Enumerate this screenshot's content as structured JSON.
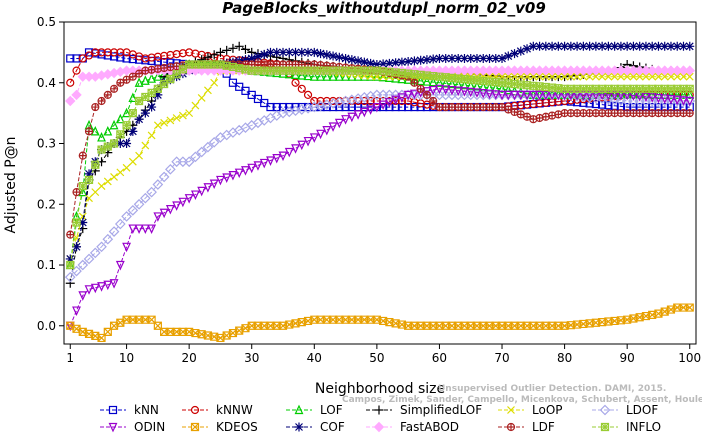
{
  "chart_data": {
    "type": "line",
    "title": "PageBlocks_withoutdupl_norm_02_v09",
    "xlabel": "Neighborhood size",
    "ylabel": "Adjusted P@n",
    "xlim": [
      0,
      101
    ],
    "ylim": [
      -0.03,
      0.5
    ],
    "xticks": [
      1,
      10,
      20,
      30,
      40,
      50,
      60,
      70,
      80,
      90,
      100
    ],
    "yticks": [
      0.0,
      0.1,
      0.2,
      0.3,
      0.4,
      0.5
    ],
    "ytick_labels": [
      "0.0",
      "0.1",
      "0.2",
      "0.3",
      "0.4",
      "0.5"
    ],
    "watermark_line1": "Unsupervised Outlier Detection. DAMI, 2015.",
    "watermark_line2": "Campos, Zimek, Sander, Campello, Micenkova, Schubert, Assent, Houle",
    "legend_position": "bottom",
    "series": [
      {
        "name": "kNN",
        "color": "#0000cc",
        "marker": "square",
        "points": [
          [
            1,
            0.44
          ],
          [
            3,
            0.44
          ],
          [
            4,
            0.45
          ],
          [
            10,
            0.44
          ],
          [
            20,
            0.43
          ],
          [
            25,
            0.43
          ],
          [
            27,
            0.4
          ],
          [
            30,
            0.38
          ],
          [
            33,
            0.36
          ],
          [
            50,
            0.36
          ],
          [
            60,
            0.36
          ],
          [
            70,
            0.36
          ],
          [
            80,
            0.37
          ],
          [
            90,
            0.36
          ],
          [
            100,
            0.36
          ]
        ]
      },
      {
        "name": "kNNW",
        "color": "#cc0000",
        "marker": "circle",
        "points": [
          [
            1,
            0.4
          ],
          [
            3,
            0.44
          ],
          [
            5,
            0.45
          ],
          [
            10,
            0.45
          ],
          [
            13,
            0.44
          ],
          [
            20,
            0.45
          ],
          [
            25,
            0.44
          ],
          [
            35,
            0.43
          ],
          [
            37,
            0.4
          ],
          [
            40,
            0.37
          ],
          [
            50,
            0.37
          ],
          [
            55,
            0.37
          ],
          [
            60,
            0.36
          ],
          [
            70,
            0.36
          ],
          [
            80,
            0.37
          ],
          [
            90,
            0.38
          ],
          [
            100,
            0.38
          ]
        ]
      },
      {
        "name": "LOF",
        "color": "#00cc00",
        "marker": "triangle-up",
        "points": [
          [
            1,
            0.1
          ],
          [
            2,
            0.18
          ],
          [
            3,
            0.22
          ],
          [
            4,
            0.33
          ],
          [
            6,
            0.31
          ],
          [
            8,
            0.33
          ],
          [
            10,
            0.35
          ],
          [
            12,
            0.4
          ],
          [
            15,
            0.41
          ],
          [
            20,
            0.43
          ],
          [
            25,
            0.43
          ],
          [
            30,
            0.42
          ],
          [
            40,
            0.41
          ],
          [
            50,
            0.41
          ],
          [
            60,
            0.4
          ],
          [
            70,
            0.39
          ],
          [
            75,
            0.38
          ],
          [
            80,
            0.38
          ],
          [
            90,
            0.38
          ],
          [
            100,
            0.38
          ]
        ]
      },
      {
        "name": "SimplifiedLOF",
        "color": "#000000",
        "marker": "plus",
        "points": [
          [
            1,
            0.07
          ],
          [
            2,
            0.13
          ],
          [
            3,
            0.16
          ],
          [
            4,
            0.24
          ],
          [
            6,
            0.27
          ],
          [
            8,
            0.3
          ],
          [
            10,
            0.32
          ],
          [
            12,
            0.34
          ],
          [
            14,
            0.37
          ],
          [
            16,
            0.41
          ],
          [
            20,
            0.43
          ],
          [
            25,
            0.45
          ],
          [
            28,
            0.46
          ],
          [
            30,
            0.45
          ],
          [
            40,
            0.43
          ],
          [
            50,
            0.42
          ],
          [
            60,
            0.42
          ],
          [
            70,
            0.41
          ],
          [
            80,
            0.41
          ],
          [
            88,
            0.42
          ],
          [
            90,
            0.43
          ],
          [
            95,
            0.42
          ],
          [
            100,
            0.42
          ]
        ]
      },
      {
        "name": "LoOP",
        "color": "#dddd00",
        "marker": "x",
        "points": [
          [
            1,
            0.11
          ],
          [
            3,
            0.18
          ],
          [
            4,
            0.21
          ],
          [
            6,
            0.23
          ],
          [
            10,
            0.26
          ],
          [
            12,
            0.28
          ],
          [
            15,
            0.33
          ],
          [
            20,
            0.35
          ],
          [
            24,
            0.4
          ],
          [
            25,
            0.42
          ],
          [
            30,
            0.42
          ],
          [
            40,
            0.42
          ],
          [
            50,
            0.41
          ],
          [
            60,
            0.41
          ],
          [
            70,
            0.41
          ],
          [
            80,
            0.41
          ],
          [
            90,
            0.41
          ],
          [
            100,
            0.41
          ]
        ]
      },
      {
        "name": "LDOF",
        "color": "#a8a8e8",
        "marker": "diamond",
        "points": [
          [
            1,
            0.08
          ],
          [
            3,
            0.1
          ],
          [
            6,
            0.13
          ],
          [
            10,
            0.18
          ],
          [
            14,
            0.22
          ],
          [
            18,
            0.27
          ],
          [
            20,
            0.27
          ],
          [
            25,
            0.31
          ],
          [
            30,
            0.33
          ],
          [
            35,
            0.35
          ],
          [
            40,
            0.36
          ],
          [
            45,
            0.37
          ],
          [
            50,
            0.38
          ],
          [
            55,
            0.38
          ],
          [
            60,
            0.38
          ],
          [
            70,
            0.38
          ],
          [
            80,
            0.38
          ],
          [
            90,
            0.37
          ],
          [
            100,
            0.37
          ]
        ]
      },
      {
        "name": "ODIN",
        "color": "#9900cc",
        "marker": "triangle-down",
        "points": [
          [
            1,
            0.0
          ],
          [
            3,
            0.05
          ],
          [
            4,
            0.06
          ],
          [
            8,
            0.07
          ],
          [
            11,
            0.16
          ],
          [
            14,
            0.16
          ],
          [
            15,
            0.18
          ],
          [
            20,
            0.21
          ],
          [
            25,
            0.24
          ],
          [
            30,
            0.26
          ],
          [
            35,
            0.28
          ],
          [
            40,
            0.31
          ],
          [
            45,
            0.34
          ],
          [
            50,
            0.36
          ],
          [
            55,
            0.38
          ],
          [
            60,
            0.39
          ],
          [
            70,
            0.38
          ],
          [
            80,
            0.38
          ],
          [
            90,
            0.38
          ],
          [
            100,
            0.37
          ]
        ]
      },
      {
        "name": "KDEOS",
        "color": "#e8a000",
        "marker": "square-x",
        "points": [
          [
            1,
            0.0
          ],
          [
            3,
            -0.01
          ],
          [
            6,
            -0.02
          ],
          [
            8,
            0.0
          ],
          [
            10,
            0.01
          ],
          [
            14,
            0.01
          ],
          [
            16,
            -0.01
          ],
          [
            20,
            -0.01
          ],
          [
            25,
            -0.02
          ],
          [
            30,
            0.0
          ],
          [
            35,
            0.0
          ],
          [
            40,
            0.01
          ],
          [
            45,
            0.01
          ],
          [
            50,
            0.01
          ],
          [
            55,
            0.0
          ],
          [
            60,
            0.0
          ],
          [
            70,
            0.0
          ],
          [
            80,
            0.0
          ],
          [
            90,
            0.01
          ],
          [
            95,
            0.02
          ],
          [
            98,
            0.03
          ],
          [
            100,
            0.03
          ]
        ]
      },
      {
        "name": "COF",
        "color": "#000077",
        "marker": "asterisk",
        "points": [
          [
            1,
            0.11
          ],
          [
            2,
            0.13
          ],
          [
            3,
            0.17
          ],
          [
            4,
            0.25
          ],
          [
            6,
            0.29
          ],
          [
            8,
            0.3
          ],
          [
            10,
            0.3
          ],
          [
            12,
            0.34
          ],
          [
            14,
            0.36
          ],
          [
            16,
            0.4
          ],
          [
            20,
            0.42
          ],
          [
            25,
            0.43
          ],
          [
            30,
            0.44
          ],
          [
            33,
            0.45
          ],
          [
            40,
            0.45
          ],
          [
            45,
            0.44
          ],
          [
            50,
            0.43
          ],
          [
            60,
            0.44
          ],
          [
            70,
            0.44
          ],
          [
            75,
            0.46
          ],
          [
            80,
            0.46
          ],
          [
            85,
            0.46
          ],
          [
            90,
            0.46
          ],
          [
            95,
            0.46
          ],
          [
            100,
            0.46
          ]
        ]
      },
      {
        "name": "FastABOD",
        "color": "#ffaaff",
        "marker": "diamond-filled",
        "points": [
          [
            1,
            0.37
          ],
          [
            2,
            0.38
          ],
          [
            3,
            0.41
          ],
          [
            5,
            0.41
          ],
          [
            10,
            0.42
          ],
          [
            20,
            0.42
          ],
          [
            30,
            0.42
          ],
          [
            40,
            0.42
          ],
          [
            50,
            0.42
          ],
          [
            60,
            0.42
          ],
          [
            70,
            0.42
          ],
          [
            80,
            0.42
          ],
          [
            90,
            0.42
          ],
          [
            100,
            0.42
          ]
        ]
      },
      {
        "name": "LDF",
        "color": "#aa2222",
        "marker": "circle-plus",
        "points": [
          [
            1,
            0.15
          ],
          [
            2,
            0.22
          ],
          [
            3,
            0.28
          ],
          [
            5,
            0.36
          ],
          [
            7,
            0.38
          ],
          [
            9,
            0.4
          ],
          [
            13,
            0.42
          ],
          [
            20,
            0.43
          ],
          [
            30,
            0.43
          ],
          [
            40,
            0.43
          ],
          [
            50,
            0.42
          ],
          [
            55,
            0.41
          ],
          [
            60,
            0.36
          ],
          [
            65,
            0.36
          ],
          [
            70,
            0.36
          ],
          [
            75,
            0.34
          ],
          [
            80,
            0.35
          ],
          [
            90,
            0.35
          ],
          [
            100,
            0.35
          ]
        ]
      },
      {
        "name": "INFLO",
        "color": "#99cc33",
        "marker": "square-star",
        "points": [
          [
            1,
            0.1
          ],
          [
            2,
            0.17
          ],
          [
            3,
            0.23
          ],
          [
            4,
            0.24
          ],
          [
            6,
            0.29
          ],
          [
            8,
            0.3
          ],
          [
            10,
            0.33
          ],
          [
            12,
            0.37
          ],
          [
            15,
            0.39
          ],
          [
            20,
            0.43
          ],
          [
            25,
            0.43
          ],
          [
            30,
            0.42
          ],
          [
            40,
            0.42
          ],
          [
            50,
            0.42
          ],
          [
            60,
            0.41
          ],
          [
            70,
            0.4
          ],
          [
            80,
            0.39
          ],
          [
            90,
            0.39
          ],
          [
            100,
            0.39
          ]
        ]
      }
    ]
  }
}
